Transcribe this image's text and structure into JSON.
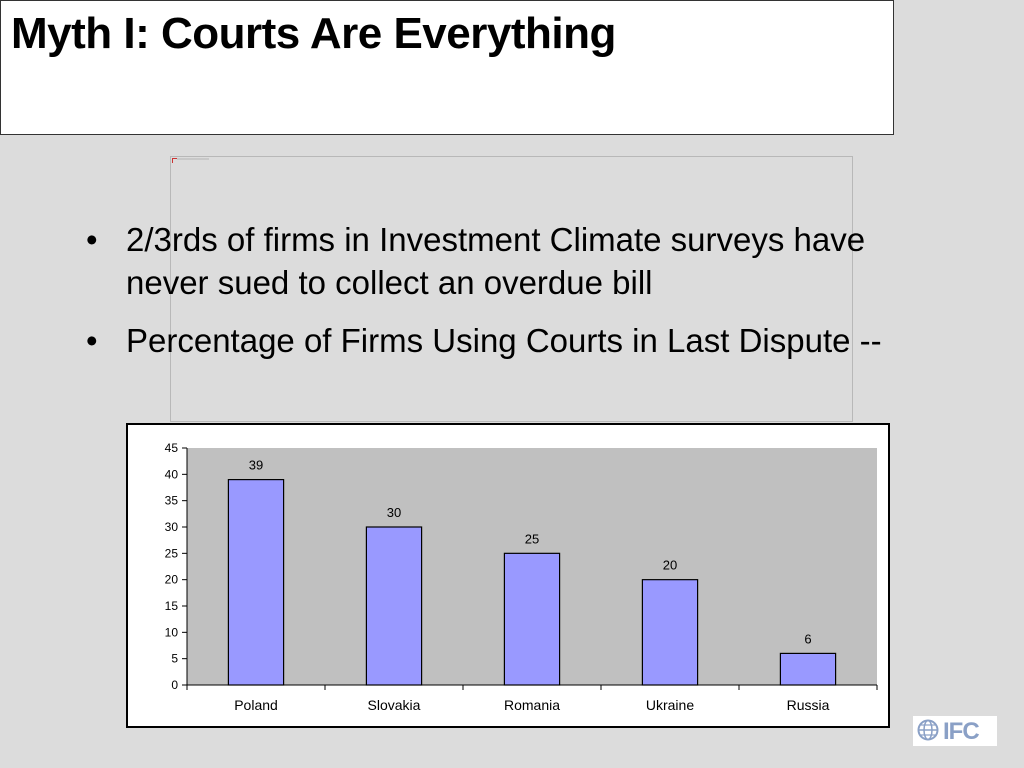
{
  "slide": {
    "title": "Myth I: Courts Are Everything",
    "bullets": [
      "2/3rds of firms in Investment Climate surveys have never sued to collect an overdue bill",
      "Percentage of Firms Using Courts in Last Dispute --"
    ],
    "bullet_glyph": "•"
  },
  "logo": {
    "text": "IFC",
    "icon": "globe-icon",
    "color": "#8aa0c6"
  },
  "chart_data": {
    "type": "bar",
    "categories": [
      "Poland",
      "Slovakia",
      "Romania",
      "Ukraine",
      "Russia"
    ],
    "values": [
      39,
      30,
      25,
      20,
      6
    ],
    "data_labels": [
      "39",
      "30",
      "25",
      "20",
      "6"
    ],
    "y_ticks": [
      0,
      5,
      10,
      15,
      20,
      25,
      30,
      35,
      40,
      45
    ],
    "ylim": [
      0,
      45
    ],
    "title": "",
    "xlabel": "",
    "ylabel": "",
    "grid": false,
    "legend": "none",
    "colors": {
      "bar_fill": "#9999ff",
      "bar_stroke": "#000000",
      "plot_bg": "#c0c0c0"
    }
  }
}
